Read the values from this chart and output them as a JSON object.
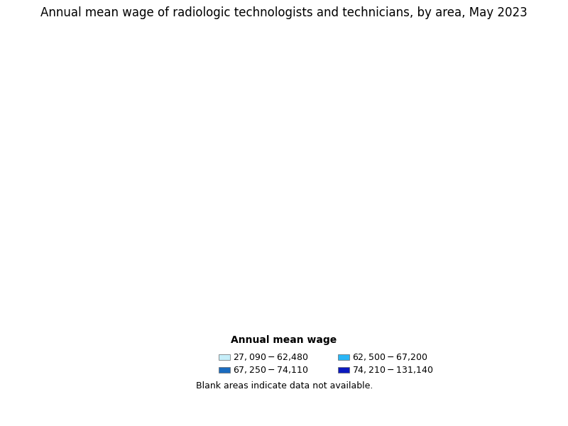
{
  "title": "Annual mean wage of radiologic technologists and technicians, by area, May 2023",
  "legend_title": "Annual mean wage",
  "legend_items": [
    {
      "label": "$27,090 - $62,480",
      "color": "#c6eef9"
    },
    {
      "label": "$62,500 - $67,200",
      "color": "#29b6f6"
    },
    {
      "label": "$67,250 - $74,110",
      "color": "#1a6bbf"
    },
    {
      "label": "$74,210 - $131,140",
      "color": "#0b1abf"
    }
  ],
  "blank_note": "Blank areas indicate data not available.",
  "background_color": "#ffffff",
  "title_fontsize": 12,
  "legend_title_fontsize": 10,
  "legend_fontsize": 9,
  "note_fontsize": 9
}
